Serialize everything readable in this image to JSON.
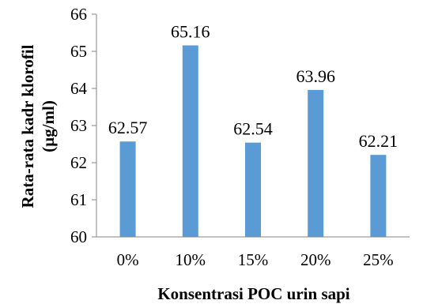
{
  "chart_data": {
    "type": "bar",
    "title": "",
    "xlabel": "Konsentrasi POC urin sapi",
    "ylabel_lines": [
      "Rata-rata kadr klorofil",
      "(µg/ml)"
    ],
    "categories": [
      "0%",
      "10%",
      "15%",
      "20%",
      "25%"
    ],
    "values": [
      62.57,
      65.16,
      62.54,
      63.96,
      62.21
    ],
    "data_labels": [
      "62.57",
      "65.16",
      "62.54",
      "63.96",
      "62.21"
    ],
    "y_ticks": [
      "60",
      "61",
      "62",
      "63",
      "64",
      "65",
      "66"
    ],
    "ylim": [
      60,
      66
    ],
    "grid": false,
    "legend": "none",
    "bar_color": "#5b9bd5",
    "axis_color": "#868686"
  }
}
